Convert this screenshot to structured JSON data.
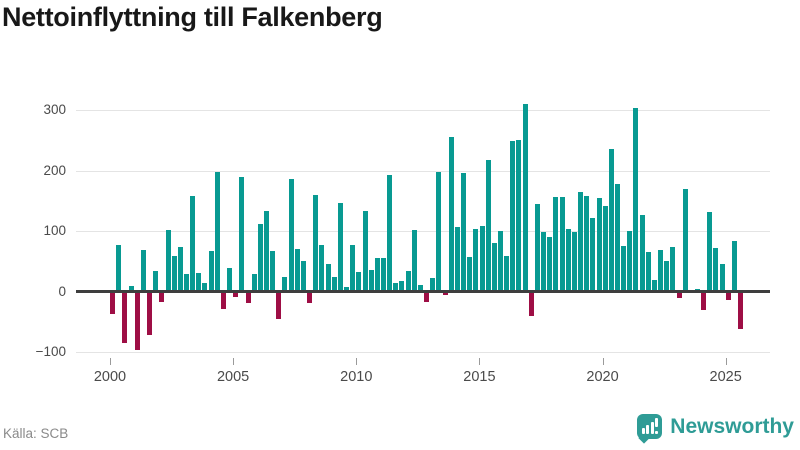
{
  "chart": {
    "title": "Nettoinflyttning till Falkenberg"
  },
  "footer": {
    "source_label": "Källa: SCB"
  },
  "branding": {
    "name": "Newsworthy",
    "logo_icon": "bar-chart-speech-pin-icon",
    "color": "#2f9c96"
  },
  "chart_data": {
    "type": "bar",
    "title": "Nettoinflyttning till Falkenberg",
    "source": "Källa: SCB",
    "frequency": "quarterly",
    "start_period": "2000-Q1",
    "end_period": "2025-Q3",
    "xlabel": "",
    "ylabel": "",
    "ylim": [
      -130,
      330
    ],
    "grid": "horizontal",
    "colors": {
      "positive": "#089a92",
      "negative": "#9e0e45",
      "zero_line": "#3e3e3e",
      "gridline": "#e4e4e4"
    },
    "y_axis": {
      "ticks": [
        {
          "value": -100,
          "label": "−100"
        },
        {
          "value": 0,
          "label": "0"
        },
        {
          "value": 100,
          "label": "100"
        },
        {
          "value": 200,
          "label": "200"
        },
        {
          "value": 300,
          "label": "300"
        }
      ]
    },
    "x_axis": {
      "ticks": [
        {
          "year": 2000,
          "label": "2000"
        },
        {
          "year": 2005,
          "label": "2005"
        },
        {
          "year": 2010,
          "label": "2010"
        },
        {
          "year": 2015,
          "label": "2015"
        },
        {
          "year": 2020,
          "label": "2020"
        },
        {
          "year": 2025,
          "label": "2025"
        }
      ]
    },
    "values": [
      -37,
      77,
      -84,
      10,
      -96,
      69,
      -71,
      34,
      -17,
      102,
      59,
      73,
      29,
      158,
      31,
      14,
      68,
      197,
      -29,
      39,
      -8,
      190,
      -19,
      29,
      111,
      134,
      68,
      -45,
      24,
      186,
      70,
      50,
      -19,
      159,
      77,
      45,
      25,
      147,
      7,
      77,
      32,
      134,
      36,
      56,
      56,
      192,
      15,
      18,
      34,
      102,
      11,
      -17,
      23,
      197,
      -5,
      255,
      107,
      196,
      57,
      103,
      109,
      218,
      81,
      100,
      59,
      249,
      251,
      310,
      -40,
      144,
      98,
      91,
      156,
      156,
      104,
      99,
      164,
      158,
      121,
      154,
      141,
      235,
      177,
      76,
      101,
      304,
      127,
      66,
      19,
      69,
      50,
      73,
      -11,
      169,
      0,
      5,
      -30,
      131,
      72,
      46,
      -14,
      84,
      -61
    ]
  }
}
